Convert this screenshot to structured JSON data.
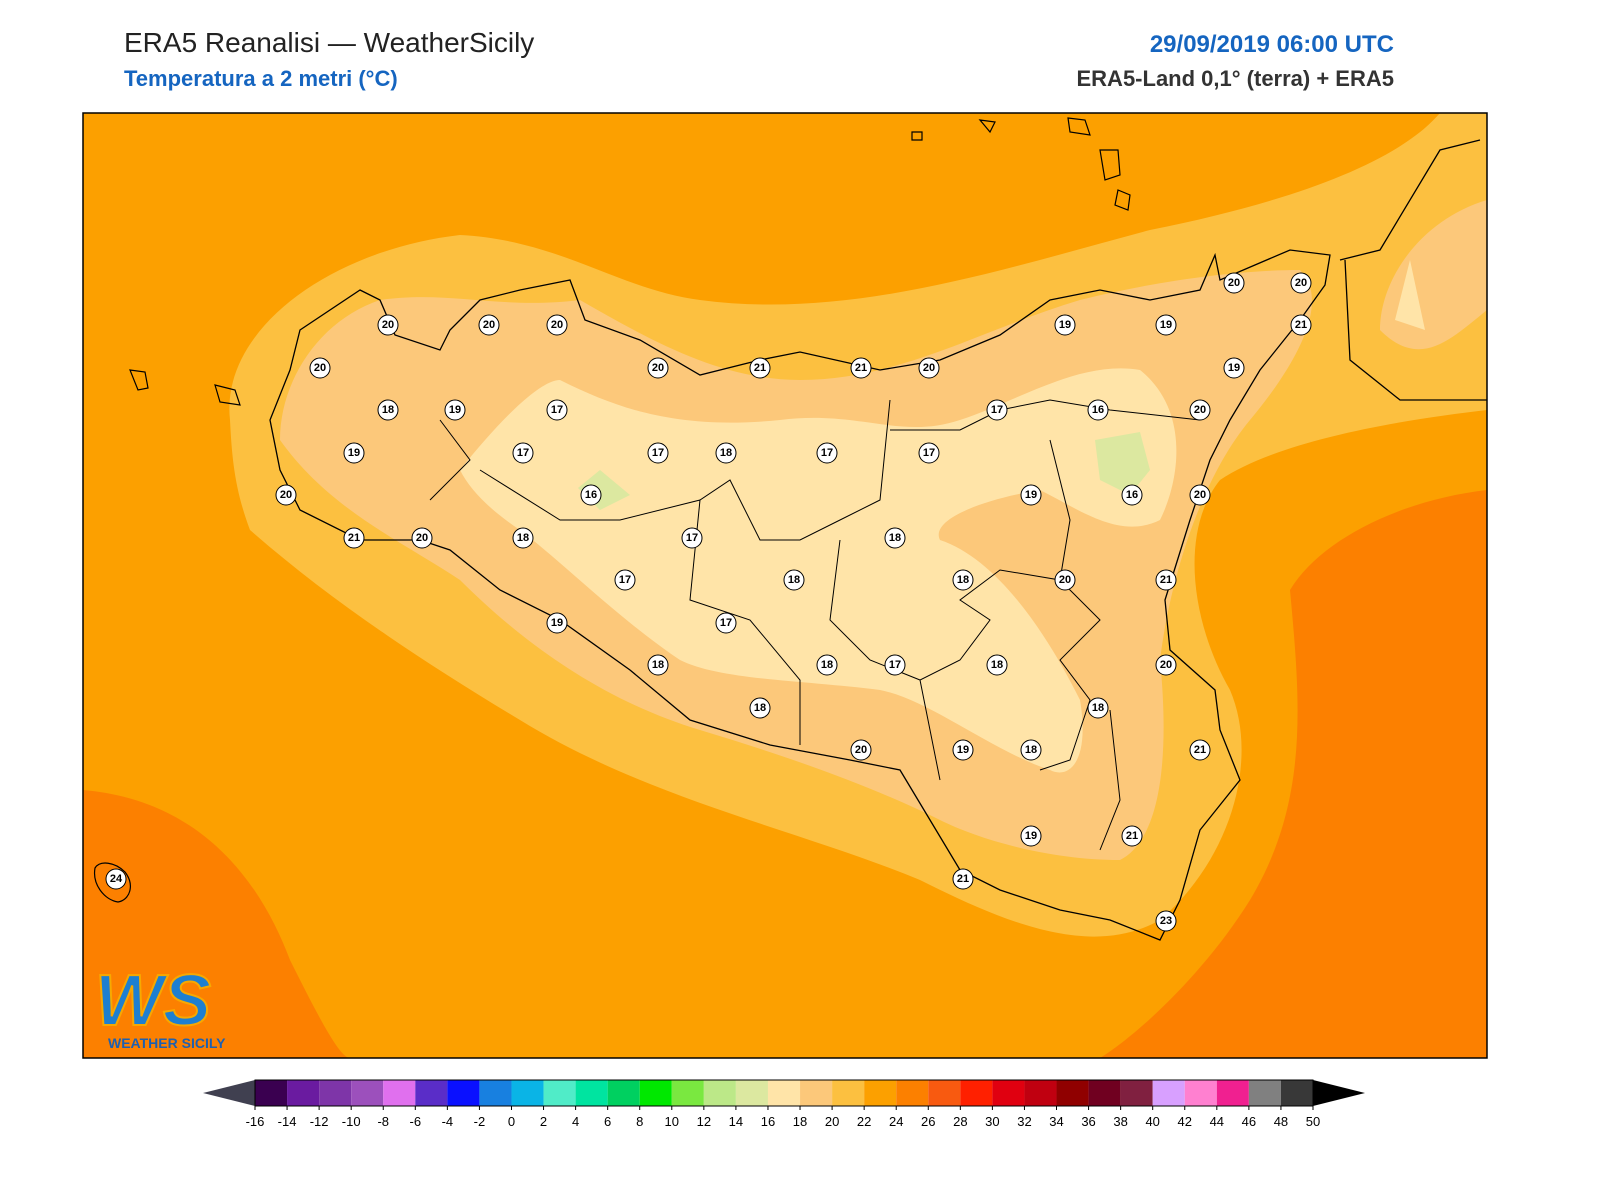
{
  "header": {
    "title": "ERA5 Reanalisi — WeatherSicily",
    "subtitle": "Temperatura a 2 metri (°C)",
    "datetime": "29/09/2019 06:00 UTC",
    "source": "ERA5-Land 0,1° (terra) + ERA5"
  },
  "stations": [
    20,
    20,
    20,
    20,
    20,
    21,
    21,
    20,
    19,
    19,
    20,
    20,
    21,
    19,
    18,
    19,
    17,
    17,
    16,
    20,
    19,
    17,
    17,
    18,
    17,
    17,
    20,
    16,
    19,
    16,
    20,
    21,
    20,
    18,
    17,
    18,
    17,
    18,
    18,
    20,
    21,
    19,
    17,
    18,
    18,
    17,
    18,
    20,
    18,
    18,
    20,
    19,
    18,
    21,
    19,
    21,
    21,
    23,
    24
  ],
  "colorbar": {
    "ticks": [
      -16,
      -14,
      -12,
      -10,
      -8,
      -6,
      -4,
      -2,
      0,
      2,
      4,
      6,
      8,
      10,
      12,
      14,
      16,
      18,
      20,
      22,
      24,
      26,
      28,
      30,
      32,
      34,
      36,
      38,
      40,
      42,
      44,
      46,
      48,
      50
    ],
    "colors": [
      "#3a0050",
      "#6a1ba0",
      "#7e35a8",
      "#9c50bc",
      "#e070ee",
      "#5a2dc8",
      "#0a10ff",
      "#1880e0",
      "#0ab4e6",
      "#50ecc8",
      "#00e4a0",
      "#00d060",
      "#00e800",
      "#7ae840",
      "#bce888",
      "#dce8a0",
      "#ffe4a8",
      "#fcc87a",
      "#fcc040",
      "#fca000",
      "#fc8000",
      "#f85a10",
      "#ff2000",
      "#e00010",
      "#c00010",
      "#900000",
      "#700020",
      "#802040",
      "#d8a0ff",
      "#ff80d0",
      "#f02090",
      "#808080",
      "#383838"
    ],
    "under_color": "#404050",
    "over_color": "#000000"
  },
  "logo": {
    "mark": "WS",
    "text": "WEATHER SICILY"
  }
}
